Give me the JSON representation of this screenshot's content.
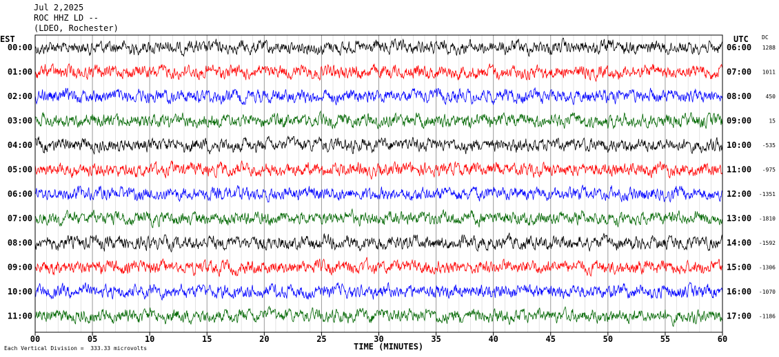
{
  "header": {
    "line1": "Jul 2,2025",
    "line2": "ROC HHZ LD --",
    "line3": "(LDEO, Rochester)"
  },
  "left_axis_label": "EST",
  "right_axis_label": "UTC",
  "dc_label": "DC",
  "footer": "Each Vertical Division =  333.33 microvolts",
  "chart_data": {
    "type": "line",
    "title": "",
    "xlabel": "TIME (MINUTES)",
    "xlim": [
      0,
      60
    ],
    "x_ticks": [
      "00",
      "05",
      "10",
      "15",
      "20",
      "25",
      "30",
      "35",
      "40",
      "45",
      "50",
      "55",
      "60"
    ],
    "grid": true,
    "series": [
      {
        "est": "00:00",
        "utc": "06:00",
        "dc": "1288",
        "color": "#000000"
      },
      {
        "est": "01:00",
        "utc": "07:00",
        "dc": "1011",
        "color": "#ff0000"
      },
      {
        "est": "02:00",
        "utc": "08:00",
        "dc": "450",
        "color": "#0000ff"
      },
      {
        "est": "03:00",
        "utc": "09:00",
        "dc": "15",
        "color": "#006600"
      },
      {
        "est": "04:00",
        "utc": "10:00",
        "dc": "-535",
        "color": "#000000"
      },
      {
        "est": "05:00",
        "utc": "11:00",
        "dc": "-975",
        "color": "#ff0000"
      },
      {
        "est": "06:00",
        "utc": "12:00",
        "dc": "-1351",
        "color": "#0000ff"
      },
      {
        "est": "07:00",
        "utc": "13:00",
        "dc": "-1810",
        "color": "#006600"
      },
      {
        "est": "08:00",
        "utc": "14:00",
        "dc": "-1592",
        "color": "#000000"
      },
      {
        "est": "09:00",
        "utc": "15:00",
        "dc": "-1306",
        "color": "#ff0000"
      },
      {
        "est": "10:00",
        "utc": "16:00",
        "dc": "-1070",
        "color": "#0000ff"
      },
      {
        "est": "11:00",
        "utc": "17:00",
        "dc": "-1186",
        "color": "#006600"
      }
    ]
  }
}
